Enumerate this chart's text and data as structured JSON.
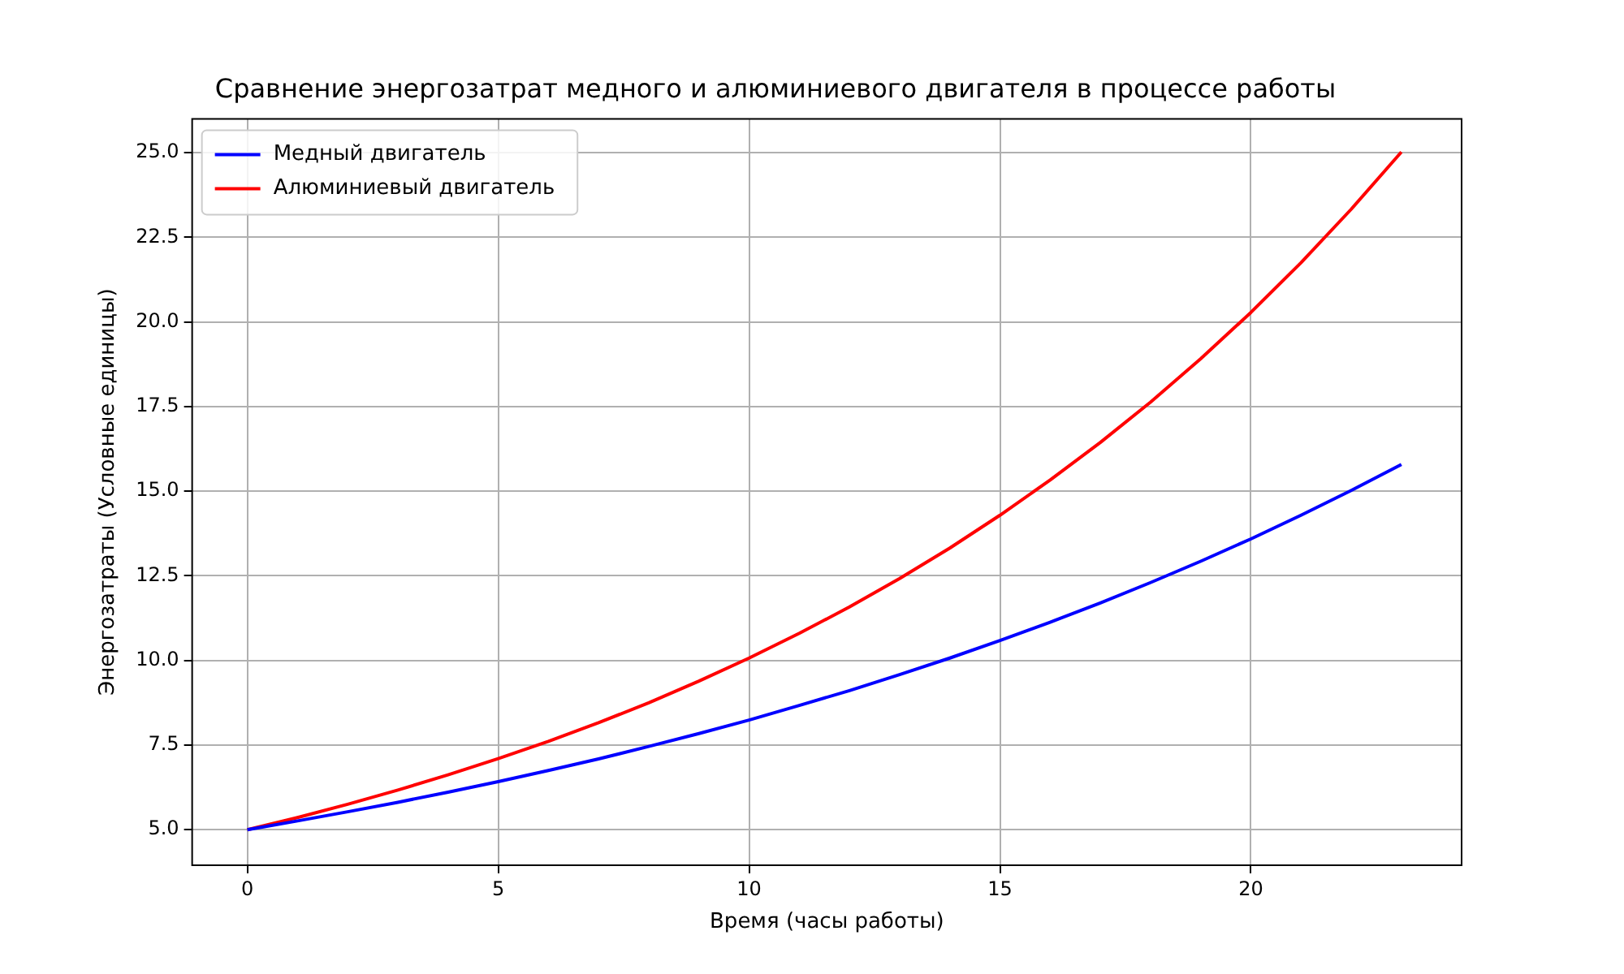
{
  "chart_data": {
    "type": "line",
    "title": "Сравнение энергозатрат медного и алюминиевого двигателя в процессе работы",
    "xlabel": "Время (часы работы)",
    "ylabel": "Энергозатраты (Условные единицы)",
    "x": [
      0,
      1,
      2,
      3,
      4,
      5,
      6,
      7,
      8,
      9,
      10,
      11,
      12,
      13,
      14,
      15,
      16,
      17,
      18,
      19,
      20,
      21,
      22,
      23
    ],
    "series": [
      {
        "name": "Медный двигатель",
        "color": "#0000ff",
        "values": [
          5.0,
          5.26,
          5.53,
          5.81,
          6.11,
          6.42,
          6.75,
          7.09,
          7.46,
          7.84,
          8.24,
          8.67,
          9.11,
          9.58,
          10.07,
          10.59,
          11.13,
          11.7,
          12.3,
          12.93,
          13.59,
          14.29,
          15.02,
          15.79
        ]
      },
      {
        "name": "Алюминиевый двигатель",
        "color": "#ff0000",
        "values": [
          5.0,
          5.36,
          5.75,
          6.17,
          6.62,
          7.1,
          7.61,
          8.16,
          8.75,
          9.39,
          10.07,
          10.8,
          11.58,
          12.42,
          13.32,
          14.29,
          15.33,
          16.44,
          17.63,
          18.91,
          20.28,
          21.75,
          23.33,
          25.02
        ]
      }
    ],
    "xlim": [
      -1.1,
      24.2
    ],
    "xticks": [
      0,
      5,
      10,
      15,
      20
    ],
    "ylim": [
      3.95,
      26.0
    ],
    "yticks": [
      {
        "value": 5,
        "label": "5.0"
      },
      {
        "value": 7.5,
        "label": "7.5"
      },
      {
        "value": 10,
        "label": "10.0"
      },
      {
        "value": 12.5,
        "label": "12.5"
      },
      {
        "value": 15,
        "label": "15.0"
      },
      {
        "value": 17.5,
        "label": "17.5"
      },
      {
        "value": 20,
        "label": "20.0"
      },
      {
        "value": 22.5,
        "label": "22.5"
      },
      {
        "value": 25,
        "label": "25.0"
      }
    ],
    "grid": true,
    "legend": "top left",
    "marker": "none",
    "line_style": "solid"
  }
}
